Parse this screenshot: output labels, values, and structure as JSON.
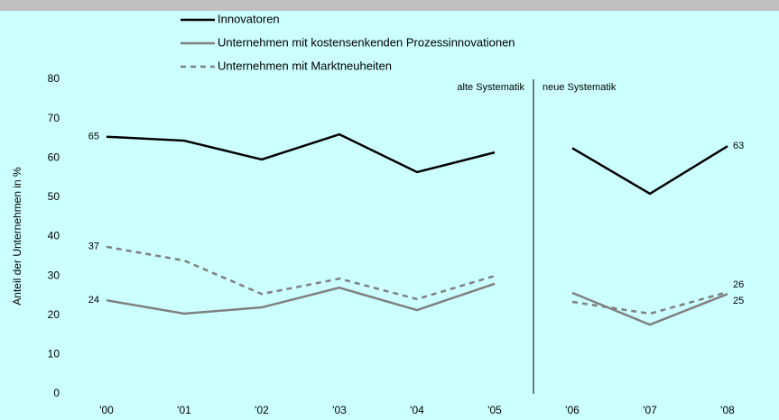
{
  "chart_data": {
    "type": "line",
    "y_axis_label": "Anteil der Unternehmen in %",
    "categories": [
      "'00",
      "'01",
      "'02",
      "'03",
      "'04",
      "'05",
      "'06",
      "'07",
      "'08"
    ],
    "ylim": [
      0,
      80
    ],
    "yticks": [
      0,
      10,
      20,
      30,
      40,
      50,
      60,
      70,
      80
    ],
    "grid": false,
    "divider": {
      "after": "'05",
      "left_label": "alte Systematik",
      "right_label": "neue Systematik"
    },
    "series": [
      {
        "name": "Innovatoren",
        "color": "#000000",
        "dashed": false,
        "values": [
          65.4,
          64.4,
          59.6,
          66,
          56.4,
          61.4,
          62.5,
          50.9,
          63
        ],
        "value_labels": [
          "65",
          null,
          null,
          null,
          null,
          null,
          null,
          null,
          "63"
        ]
      },
      {
        "name": "Unternehmen mit kostensenkenden Prozessinnovationen",
        "color": "#808080",
        "dashed": false,
        "values": [
          23.8,
          20.4,
          22,
          27,
          21.3,
          28,
          25.7,
          17.6,
          25.4
        ],
        "value_labels": [
          "24",
          null,
          null,
          null,
          null,
          null,
          null,
          null,
          "25"
        ]
      },
      {
        "name": "Unternehmen mit Marktneuheiten",
        "color": "#808080",
        "dashed": true,
        "values": [
          37.4,
          33.9,
          25.4,
          29.3,
          24.1,
          30,
          23.4,
          20.4,
          25.9
        ],
        "value_labels": [
          "37",
          null,
          null,
          null,
          null,
          null,
          null,
          null,
          "26"
        ]
      }
    ]
  }
}
